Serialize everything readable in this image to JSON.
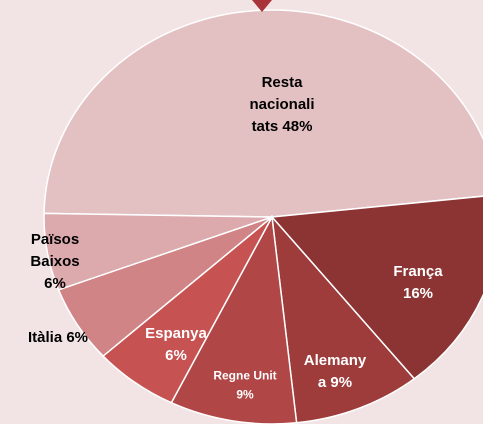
{
  "chart_data": {
    "type": "pie",
    "labels": [
      [
        "Resta",
        "nacionali",
        "tats 48%"
      ],
      [
        "França",
        "16%"
      ],
      [
        "Alemany",
        "a 9%"
      ],
      [
        "Regne Unit",
        "9%"
      ],
      [
        "Espanya",
        "6%"
      ],
      [
        "Itàlia 6%"
      ],
      [
        "Països",
        "Baixos",
        "6%"
      ]
    ],
    "values": [
      48,
      16,
      9,
      9,
      6,
      6,
      6
    ],
    "colors": [
      "#e3c1c3",
      "#8c3434",
      "#9e3b3b",
      "#b04646",
      "#c75252",
      "#d08486",
      "#dcaaac"
    ]
  }
}
